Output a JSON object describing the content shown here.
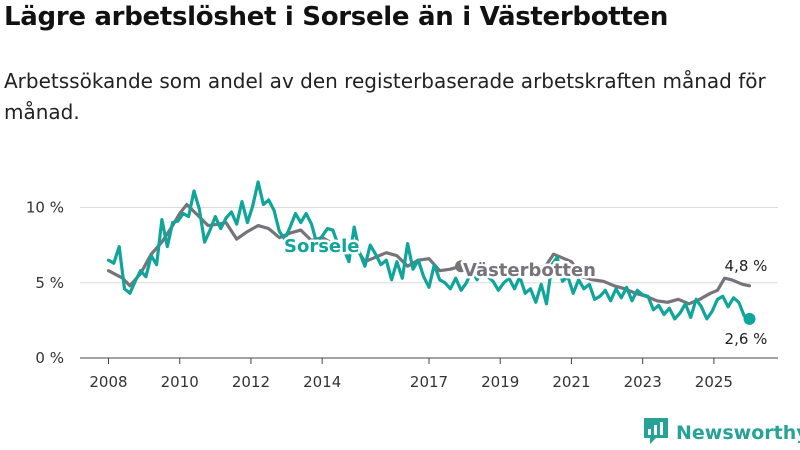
{
  "title": "Lägre arbetslöshet i Sorsele än i Västerbotten",
  "subtitle": "Arbetssökande som andel av den registerbaserade arbetskraften månad för månad.",
  "brand": {
    "name": "Newsworthy",
    "icon": "bar-chart-logo-icon",
    "color": "#27a296"
  },
  "chart_data": {
    "type": "line",
    "title": "Lägre arbetslöshet i Sorsele än i Västerbotten",
    "xlabel": "",
    "ylabel": "",
    "ylim": [
      0,
      10.5
    ],
    "xlim": [
      2007.2,
      2026.8
    ],
    "y_ticks": [
      0,
      5,
      10
    ],
    "y_tick_labels": [
      "0 %",
      "5 %",
      "10 %"
    ],
    "x_ticks": [
      2008,
      2010,
      2012,
      2014,
      2017,
      2019,
      2021,
      2023,
      2025
    ],
    "x_tick_labels": [
      "2008",
      "2010",
      "2012",
      "2014",
      "2017",
      "2019",
      "2021",
      "2023",
      "2025"
    ],
    "series": [
      {
        "name": "Västerbotten",
        "label": "Västerbotten",
        "color": "#77737a",
        "end_label": "4,8 %",
        "x": [
          2008.0,
          2008.4,
          2008.6,
          2008.9,
          2009.2,
          2009.5,
          2009.8,
          2010.0,
          2010.2,
          2010.5,
          2010.8,
          2011.1,
          2011.3,
          2011.6,
          2011.9,
          2012.2,
          2012.5,
          2012.8,
          2013.1,
          2013.4,
          2013.7,
          2014.0,
          2014.3,
          2014.6,
          2014.9,
          2015.2,
          2015.5,
          2015.8,
          2016.1,
          2016.4,
          2016.7,
          2017.0,
          2017.3,
          2017.6,
          2017.9
        ],
        "values": [
          5.8,
          5.3,
          4.8,
          5.6,
          6.9,
          7.7,
          8.8,
          9.6,
          10.2,
          9.5,
          8.8,
          8.9,
          9.0,
          7.9,
          8.4,
          8.8,
          8.6,
          8.0,
          8.3,
          8.5,
          7.8,
          8.0,
          7.6,
          7.3,
          7.5,
          6.4,
          6.7,
          7.0,
          6.8,
          6.1,
          6.5,
          6.6,
          5.8,
          5.9,
          6.1
        ]
      },
      {
        "name": "Västerbotten (forts.)",
        "color": "#77737a",
        "x": [
          2020.0,
          2020.3,
          2020.5,
          2020.7,
          2021.0,
          2021.3,
          2021.6,
          2021.9,
          2022.2,
          2022.5,
          2022.8,
          2023.1,
          2023.4,
          2023.7,
          2024.0,
          2024.3,
          2024.6,
          2024.9,
          2025.1,
          2025.3,
          2025.5,
          2025.8,
          2026.0
        ],
        "values": [
          5.8,
          6.2,
          6.9,
          6.7,
          6.4,
          5.4,
          5.2,
          5.1,
          4.8,
          4.6,
          4.3,
          4.1,
          3.8,
          3.7,
          3.9,
          3.6,
          3.9,
          4.3,
          4.5,
          5.3,
          5.2,
          4.9,
          4.8
        ]
      },
      {
        "name": "Sorsele",
        "label": "Sorsele",
        "color": "#0fa59a",
        "end_label": "2,6 %",
        "x": [
          2008.0,
          2008.15,
          2008.3,
          2008.45,
          2008.6,
          2008.75,
          2008.9,
          2009.05,
          2009.2,
          2009.35,
          2009.5,
          2009.65,
          2009.8,
          2009.95,
          2010.1,
          2010.25,
          2010.4,
          2010.55,
          2010.7,
          2010.85,
          2011.0,
          2011.15,
          2011.3,
          2011.45,
          2011.6,
          2011.75,
          2011.9,
          2012.05,
          2012.2,
          2012.35,
          2012.5,
          2012.65,
          2012.8,
          2012.95,
          2013.1,
          2013.25,
          2013.4,
          2013.55,
          2013.7,
          2013.85,
          2014.0,
          2014.15,
          2014.3,
          2014.45,
          2014.6,
          2014.75,
          2014.9,
          2015.05,
          2015.2,
          2015.35,
          2015.5,
          2015.65,
          2015.8,
          2015.95,
          2016.1,
          2016.25,
          2016.4,
          2016.55,
          2016.7,
          2016.85,
          2017.0,
          2017.15,
          2017.3,
          2017.45,
          2017.6,
          2017.75,
          2017.9,
          2018.05,
          2018.2,
          2018.35,
          2018.5,
          2018.65,
          2018.8,
          2018.95,
          2019.1,
          2019.25,
          2019.4,
          2019.55,
          2019.7,
          2019.85,
          2020.0,
          2020.15,
          2020.3,
          2020.45,
          2020.6,
          2020.75,
          2020.9,
          2021.05,
          2021.2,
          2021.35,
          2021.5,
          2021.65,
          2021.8,
          2021.95,
          2022.1,
          2022.25,
          2022.4,
          2022.55,
          2022.7,
          2022.85,
          2023.0,
          2023.15,
          2023.3,
          2023.45,
          2023.6,
          2023.75,
          2023.9,
          2024.05,
          2024.2,
          2024.35,
          2024.5,
          2024.65,
          2024.8,
          2024.95,
          2025.1,
          2025.25,
          2025.4,
          2025.55,
          2025.7,
          2025.85,
          2026.0
        ],
        "values": [
          6.5,
          6.3,
          7.4,
          4.6,
          4.3,
          5.1,
          5.8,
          5.4,
          6.8,
          6.2,
          9.2,
          7.4,
          9.0,
          9.1,
          9.6,
          9.4,
          11.1,
          9.9,
          7.7,
          8.5,
          9.4,
          8.6,
          9.3,
          9.7,
          8.9,
          10.4,
          9.0,
          10.1,
          11.7,
          10.2,
          10.5,
          9.8,
          8.4,
          7.9,
          8.7,
          9.6,
          9.0,
          9.6,
          8.9,
          7.6,
          8.1,
          8.6,
          8.5,
          7.5,
          7.3,
          6.4,
          8.7,
          7.0,
          6.1,
          7.5,
          6.9,
          6.2,
          6.5,
          5.2,
          6.4,
          5.3,
          7.6,
          5.9,
          6.5,
          5.4,
          4.7,
          6.2,
          5.2,
          5.0,
          4.6,
          5.3,
          4.5,
          5.0,
          5.8,
          5.2,
          5.8,
          5.4,
          5.1,
          4.5,
          5.0,
          5.3,
          4.6,
          5.4,
          4.3,
          4.6,
          3.7,
          4.9,
          3.6,
          6.2,
          6.7,
          5.1,
          5.4,
          4.3,
          5.2,
          4.6,
          4.9,
          3.9,
          4.1,
          4.5,
          3.8,
          4.6,
          4.0,
          4.7,
          3.8,
          4.5,
          4.2,
          4.1,
          3.2,
          3.5,
          2.9,
          3.3,
          2.6,
          3.0,
          3.6,
          2.7,
          3.9,
          3.4,
          2.6,
          3.1,
          3.9,
          4.1,
          3.4,
          4.0,
          3.7,
          2.8,
          2.6
        ]
      }
    ]
  }
}
